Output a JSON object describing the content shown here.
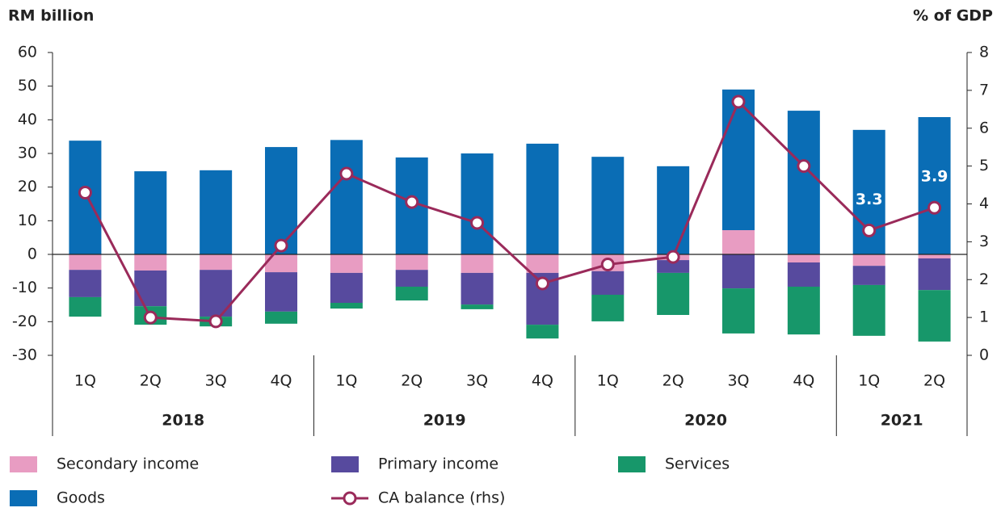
{
  "chart_data": {
    "type": "bar",
    "y_label": "RM billion",
    "y2_label": "% of GDP",
    "categories": [
      "1Q",
      "2Q",
      "3Q",
      "4Q",
      "1Q",
      "2Q",
      "3Q",
      "4Q",
      "1Q",
      "2Q",
      "3Q",
      "4Q",
      "1Q",
      "2Q"
    ],
    "groups": [
      {
        "name": "2018",
        "size": 4
      },
      {
        "name": "2019",
        "size": 4
      },
      {
        "name": "2020",
        "size": 4
      },
      {
        "name": "2021",
        "size": 2
      }
    ],
    "ylim": [
      -30,
      60
    ],
    "yticks": [
      -30,
      -20,
      -10,
      0,
      10,
      20,
      30,
      40,
      50,
      60
    ],
    "y2lim": [
      0,
      8
    ],
    "y2ticks": [
      0,
      1,
      2,
      3,
      4,
      5,
      6,
      7,
      8
    ],
    "series": [
      {
        "name": "Secondary income",
        "color": "#e89cc2",
        "values": [
          -4.6,
          -4.8,
          -4.6,
          -5.3,
          -5.5,
          -4.6,
          -5.5,
          -5.5,
          -5,
          -1.7,
          7.2,
          -2.4,
          -3.4,
          -1.2
        ]
      },
      {
        "name": "Primary income",
        "color": "#574a9e",
        "values": [
          -8.1,
          -10.6,
          -13.9,
          -11.7,
          -8.9,
          -5,
          -9.4,
          -15.4,
          -7,
          -3.8,
          -10.1,
          -7.2,
          -5.7,
          -9.4
        ]
      },
      {
        "name": "Services",
        "color": "#17976a",
        "values": [
          -5.8,
          -5.5,
          -2.9,
          -3.6,
          -1.7,
          -4.1,
          -1.4,
          -4.1,
          -7.9,
          -12.5,
          -13.4,
          -14.2,
          -15.1,
          -15.3
        ]
      },
      {
        "name": "Goods",
        "color": "#0a6db5",
        "values": [
          33.8,
          24.7,
          25,
          31.9,
          34,
          28.8,
          30,
          32.9,
          29,
          26.2,
          41.8,
          42.7,
          37,
          40.8
        ]
      },
      {
        "name": "CA balance (rhs)",
        "color": "#9a2a5a",
        "type": "line",
        "axis": "y2",
        "values": [
          4.3,
          1.0,
          0.9,
          2.9,
          4.8,
          4.05,
          3.5,
          1.9,
          2.4,
          2.6,
          6.7,
          5.0,
          3.3,
          3.9
        ],
        "value_labels": [
          null,
          null,
          null,
          null,
          null,
          null,
          null,
          null,
          null,
          null,
          null,
          null,
          "3.3",
          "3.9"
        ]
      }
    ]
  }
}
